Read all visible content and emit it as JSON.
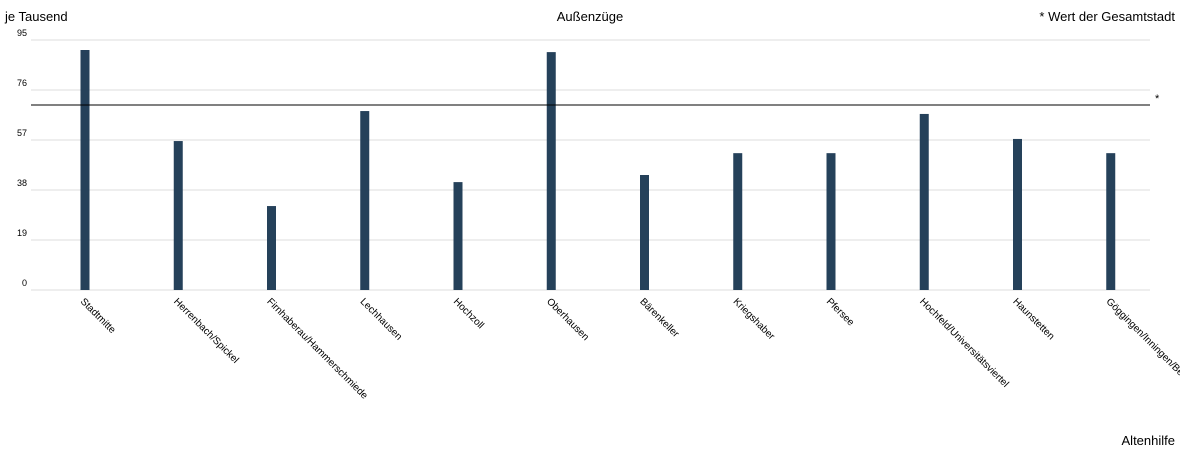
{
  "chart_data": {
    "type": "bar",
    "title": "Außenzüge",
    "y_label": "je Tausend",
    "note": "* Wert der Gesamtstadt",
    "footer": "Altenhilfe",
    "categories": [
      "Stadtmitte",
      "Herrenbach/Spickel",
      "Firnhaberau/Hammerschmiede",
      "Lechhausen",
      "Hochzoll",
      "Oberhausen",
      "Bärenkeller",
      "Kriegshaber",
      "Pfersee",
      "Hochfeld/Universitätsviertel",
      "Haunstetten",
      "Göggingen/Inningen/Bergheim"
    ],
    "values": [
      91.2,
      56.6,
      31.9,
      68,
      41,
      90.4,
      43.7,
      52,
      52,
      66.9,
      57.4,
      52
    ],
    "color": "#25415a",
    "reference_line": {
      "value": 70.3,
      "label": "*"
    },
    "ylim": [
      0,
      95
    ],
    "yticks": [
      0,
      19,
      38,
      57,
      76,
      95
    ],
    "grid": true
  }
}
